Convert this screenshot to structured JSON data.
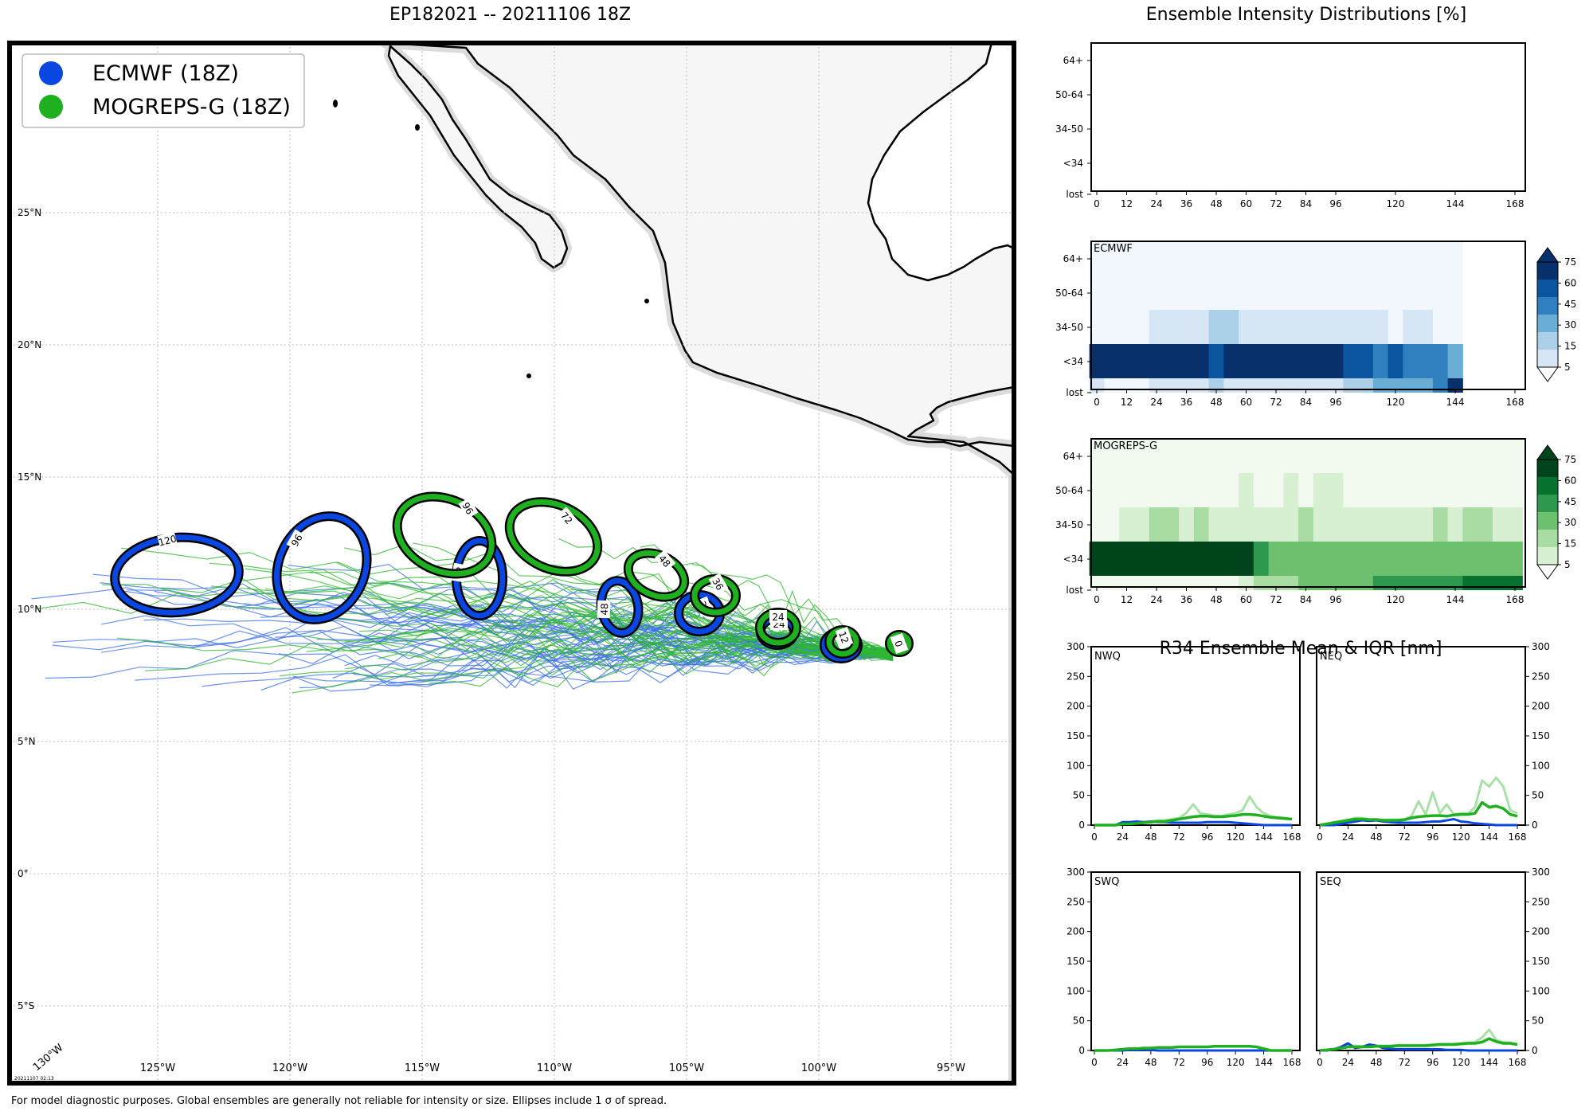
{
  "map": {
    "title": "EP182021 -- 20211106 18Z",
    "legend": [
      {
        "label": "ECMWF (18Z)",
        "color": "#0a47e0"
      },
      {
        "label": "MOGREPS-G (18Z)",
        "color": "#1fb01f"
      }
    ],
    "lat_labels": [
      "25°N",
      "20°N",
      "15°N",
      "10°N",
      "5°N",
      "0°",
      "5°S"
    ],
    "lon_labels": [
      "125°W",
      "120°W",
      "115°W",
      "110°W",
      "105°W",
      "100°W",
      "95°W"
    ],
    "corner_label": "130°W",
    "timestamp": "20211107 02:13",
    "ecmwf_ellipse_labels": [
      "120",
      "96",
      "72",
      "48",
      "36",
      "24",
      "12"
    ],
    "mogreps_ellipse_labels": [
      "96",
      "72",
      "48",
      "36",
      "24",
      "12",
      "0"
    ]
  },
  "footer": "For model diagnostic purposes. Global ensembles are generally not reliable for intensity or size. Ellipses include 1 σ of spread.",
  "intensity": {
    "title": "Ensemble Intensity Distributions [%]",
    "categories": [
      "64+",
      "50-64",
      "34-50",
      "<34",
      "lost"
    ],
    "x_ticks": [
      "0",
      "12",
      "24",
      "36",
      "48",
      "60",
      "72",
      "84",
      "96",
      "120",
      "144",
      "168"
    ],
    "ecmwf_label": "ECMWF",
    "mogreps_label": "MOGREPS-G",
    "colorbar_ticks": [
      "75",
      "60",
      "45",
      "30",
      "15",
      "5"
    ]
  },
  "r34": {
    "title": "R34 Ensemble Mean & IQR [nm]",
    "panels": [
      "NWQ",
      "NEQ",
      "SWQ",
      "SEQ"
    ],
    "y_ticks": [
      "300",
      "250",
      "200",
      "150",
      "100",
      "50",
      "0"
    ],
    "x_ticks": [
      "0",
      "24",
      "48",
      "72",
      "96",
      "120",
      "144",
      "168"
    ]
  },
  "chart_data": [
    {
      "type": "heatmap",
      "title": "ECMWF intensity distribution (%)",
      "x": [
        0,
        6,
        12,
        18,
        24,
        30,
        36,
        42,
        48,
        54,
        60,
        66,
        72,
        78,
        84,
        90,
        96,
        102,
        108,
        114,
        120,
        126,
        132,
        138,
        144
      ],
      "y": [
        "64+",
        "50-64",
        "34-50",
        "<34",
        "lost"
      ],
      "values": {
        "64+": [
          0,
          0,
          0,
          0,
          0,
          0,
          0,
          0,
          0,
          0,
          0,
          0,
          0,
          0,
          0,
          0,
          0,
          0,
          0,
          0,
          0,
          0,
          0,
          0,
          0
        ],
        "50-64": [
          0,
          0,
          0,
          0,
          0,
          0,
          0,
          0,
          0,
          0,
          0,
          0,
          0,
          0,
          0,
          0,
          0,
          0,
          0,
          0,
          0,
          0,
          0,
          0,
          0
        ],
        "34-50": [
          0,
          0,
          0,
          0,
          10,
          10,
          10,
          10,
          20,
          20,
          10,
          10,
          10,
          10,
          10,
          10,
          10,
          10,
          10,
          10,
          0,
          10,
          10,
          0,
          0
        ],
        "<34": [
          95,
          95,
          95,
          95,
          85,
          85,
          85,
          85,
          60,
          85,
          85,
          85,
          85,
          85,
          85,
          85,
          85,
          60,
          60,
          50,
          60,
          50,
          50,
          50,
          35
        ],
        "lost": [
          5,
          0,
          0,
          0,
          5,
          5,
          5,
          5,
          20,
          5,
          5,
          5,
          5,
          5,
          5,
          5,
          5,
          15,
          15,
          30,
          30,
          35,
          35,
          50,
          75
        ]
      },
      "colorbar_ticks": [
        5,
        15,
        30,
        45,
        60,
        75
      ]
    },
    {
      "type": "heatmap",
      "title": "MOGREPS-G intensity distribution (%)",
      "x": [
        0,
        6,
        12,
        18,
        24,
        30,
        36,
        42,
        48,
        54,
        60,
        66,
        72,
        78,
        84,
        90,
        96,
        102,
        108,
        114,
        120,
        126,
        132,
        138,
        144,
        150,
        156,
        162,
        168
      ],
      "y": [
        "64+",
        "50-64",
        "34-50",
        "<34",
        "lost"
      ],
      "values": {
        "64+": [
          0,
          0,
          0,
          0,
          0,
          0,
          0,
          0,
          0,
          0,
          0,
          0,
          0,
          0,
          0,
          0,
          0,
          0,
          0,
          0,
          0,
          0,
          0,
          0,
          0,
          0,
          0,
          0,
          0
        ],
        "50-64": [
          0,
          0,
          0,
          0,
          0,
          0,
          0,
          0,
          0,
          0,
          5,
          0,
          0,
          5,
          0,
          5,
          5,
          0,
          0,
          0,
          0,
          0,
          0,
          0,
          0,
          0,
          0,
          0,
          0
        ],
        "34-50": [
          0,
          0,
          10,
          10,
          20,
          20,
          10,
          20,
          10,
          10,
          10,
          10,
          10,
          10,
          20,
          10,
          10,
          10,
          10,
          10,
          10,
          10,
          10,
          20,
          10,
          20,
          20,
          10,
          10
        ],
        "<34": [
          90,
          90,
          90,
          90,
          90,
          90,
          90,
          90,
          90,
          90,
          90,
          50,
          40,
          40,
          40,
          40,
          40,
          40,
          40,
          40,
          40,
          30,
          30,
          30,
          30,
          30,
          30,
          30,
          30
        ],
        "lost": [
          0,
          0,
          0,
          0,
          0,
          0,
          0,
          0,
          0,
          0,
          5,
          15,
          15,
          15,
          30,
          30,
          30,
          30,
          30,
          45,
          45,
          45,
          45,
          45,
          45,
          60,
          60,
          60,
          60
        ]
      },
      "colorbar_ticks": [
        5,
        15,
        30,
        45,
        60,
        75
      ]
    },
    {
      "type": "line",
      "title": "R34 NWQ",
      "x": [
        0,
        6,
        12,
        18,
        24,
        30,
        36,
        42,
        48,
        54,
        60,
        66,
        72,
        78,
        84,
        90,
        96,
        102,
        108,
        114,
        120,
        126,
        132,
        138,
        144,
        150,
        156,
        162,
        168
      ],
      "series": [
        {
          "name": "ECMWF mean",
          "values": [
            0,
            0,
            0,
            0,
            5,
            5,
            6,
            5,
            6,
            5,
            5,
            4,
            4,
            4,
            4,
            4,
            5,
            5,
            5,
            5,
            4,
            3,
            2,
            1,
            0,
            0,
            0,
            0,
            0
          ]
        },
        {
          "name": "MOGREPS-G mean",
          "values": [
            0,
            0,
            0,
            0,
            2,
            2,
            3,
            4,
            5,
            6,
            6,
            8,
            10,
            12,
            14,
            15,
            15,
            14,
            14,
            15,
            16,
            18,
            18,
            17,
            15,
            13,
            12,
            11,
            10
          ]
        },
        {
          "name": "MOGREPS-G upper IQR",
          "values": [
            0,
            0,
            0,
            0,
            3,
            3,
            4,
            5,
            6,
            8,
            8,
            10,
            12,
            20,
            35,
            20,
            18,
            16,
            15,
            18,
            20,
            25,
            48,
            30,
            20,
            15,
            13,
            12,
            10
          ]
        }
      ],
      "ylim": [
        0,
        300
      ]
    },
    {
      "type": "line",
      "title": "R34 NEQ",
      "x": [
        0,
        6,
        12,
        18,
        24,
        30,
        36,
        42,
        48,
        54,
        60,
        66,
        72,
        78,
        84,
        90,
        96,
        102,
        108,
        114,
        120,
        126,
        132,
        138,
        144,
        150,
        156,
        162,
        168
      ],
      "series": [
        {
          "name": "ECMWF mean",
          "values": [
            0,
            0,
            0,
            2,
            4,
            6,
            8,
            7,
            8,
            6,
            5,
            4,
            4,
            4,
            4,
            5,
            6,
            6,
            8,
            10,
            6,
            5,
            3,
            2,
            1,
            0,
            0,
            0,
            0
          ]
        },
        {
          "name": "MOGREPS-G mean",
          "values": [
            0,
            2,
            4,
            6,
            8,
            10,
            10,
            9,
            9,
            8,
            8,
            8,
            9,
            12,
            14,
            15,
            16,
            16,
            15,
            17,
            18,
            18,
            20,
            38,
            30,
            32,
            28,
            18,
            15
          ]
        },
        {
          "name": "MOGREPS-G upper IQR",
          "values": [
            0,
            2,
            5,
            7,
            9,
            12,
            12,
            10,
            10,
            9,
            9,
            9,
            10,
            15,
            40,
            18,
            55,
            20,
            35,
            18,
            20,
            20,
            30,
            75,
            65,
            80,
            65,
            25,
            20
          ]
        }
      ],
      "ylim": [
        0,
        300
      ]
    },
    {
      "type": "line",
      "title": "R34 SWQ",
      "x": [
        0,
        6,
        12,
        18,
        24,
        30,
        36,
        42,
        48,
        54,
        60,
        66,
        72,
        78,
        84,
        90,
        96,
        102,
        108,
        114,
        120,
        126,
        132,
        138,
        144,
        150,
        156,
        162,
        168
      ],
      "series": [
        {
          "name": "ECMWF mean",
          "values": [
            0,
            0,
            0,
            0,
            0,
            1,
            1,
            1,
            1,
            0,
            0,
            0,
            0,
            0,
            0,
            0,
            0,
            0,
            0,
            0,
            0,
            0,
            0,
            0,
            0,
            0,
            0,
            0,
            0
          ]
        },
        {
          "name": "MOGREPS-G mean",
          "values": [
            0,
            0,
            0,
            1,
            2,
            3,
            3,
            4,
            4,
            5,
            5,
            5,
            6,
            6,
            6,
            6,
            6,
            7,
            7,
            7,
            7,
            7,
            7,
            6,
            3,
            0,
            0,
            0,
            0
          ]
        }
      ],
      "ylim": [
        0,
        300
      ]
    },
    {
      "type": "line",
      "title": "R34 SEQ",
      "x": [
        0,
        6,
        12,
        18,
        24,
        30,
        36,
        42,
        48,
        54,
        60,
        66,
        72,
        78,
        84,
        90,
        96,
        102,
        108,
        114,
        120,
        126,
        132,
        138,
        144,
        150,
        156,
        162,
        168
      ],
      "series": [
        {
          "name": "ECMWF mean",
          "values": [
            0,
            0,
            2,
            6,
            12,
            4,
            6,
            10,
            8,
            4,
            3,
            2,
            2,
            2,
            2,
            2,
            2,
            2,
            1,
            1,
            1,
            0,
            0,
            0,
            0,
            0,
            0,
            0,
            0
          ]
        },
        {
          "name": "MOGREPS-G mean",
          "values": [
            0,
            1,
            2,
            4,
            6,
            6,
            6,
            6,
            7,
            7,
            7,
            8,
            8,
            8,
            8,
            8,
            9,
            10,
            10,
            10,
            11,
            12,
            12,
            14,
            20,
            15,
            12,
            12,
            10
          ]
        },
        {
          "name": "MOGREPS-G upper IQR",
          "values": [
            0,
            1,
            3,
            5,
            8,
            8,
            7,
            7,
            8,
            8,
            8,
            9,
            9,
            9,
            9,
            9,
            10,
            11,
            11,
            11,
            12,
            13,
            14,
            22,
            35,
            18,
            14,
            13,
            10
          ]
        }
      ],
      "ylim": [
        0,
        300
      ]
    }
  ]
}
